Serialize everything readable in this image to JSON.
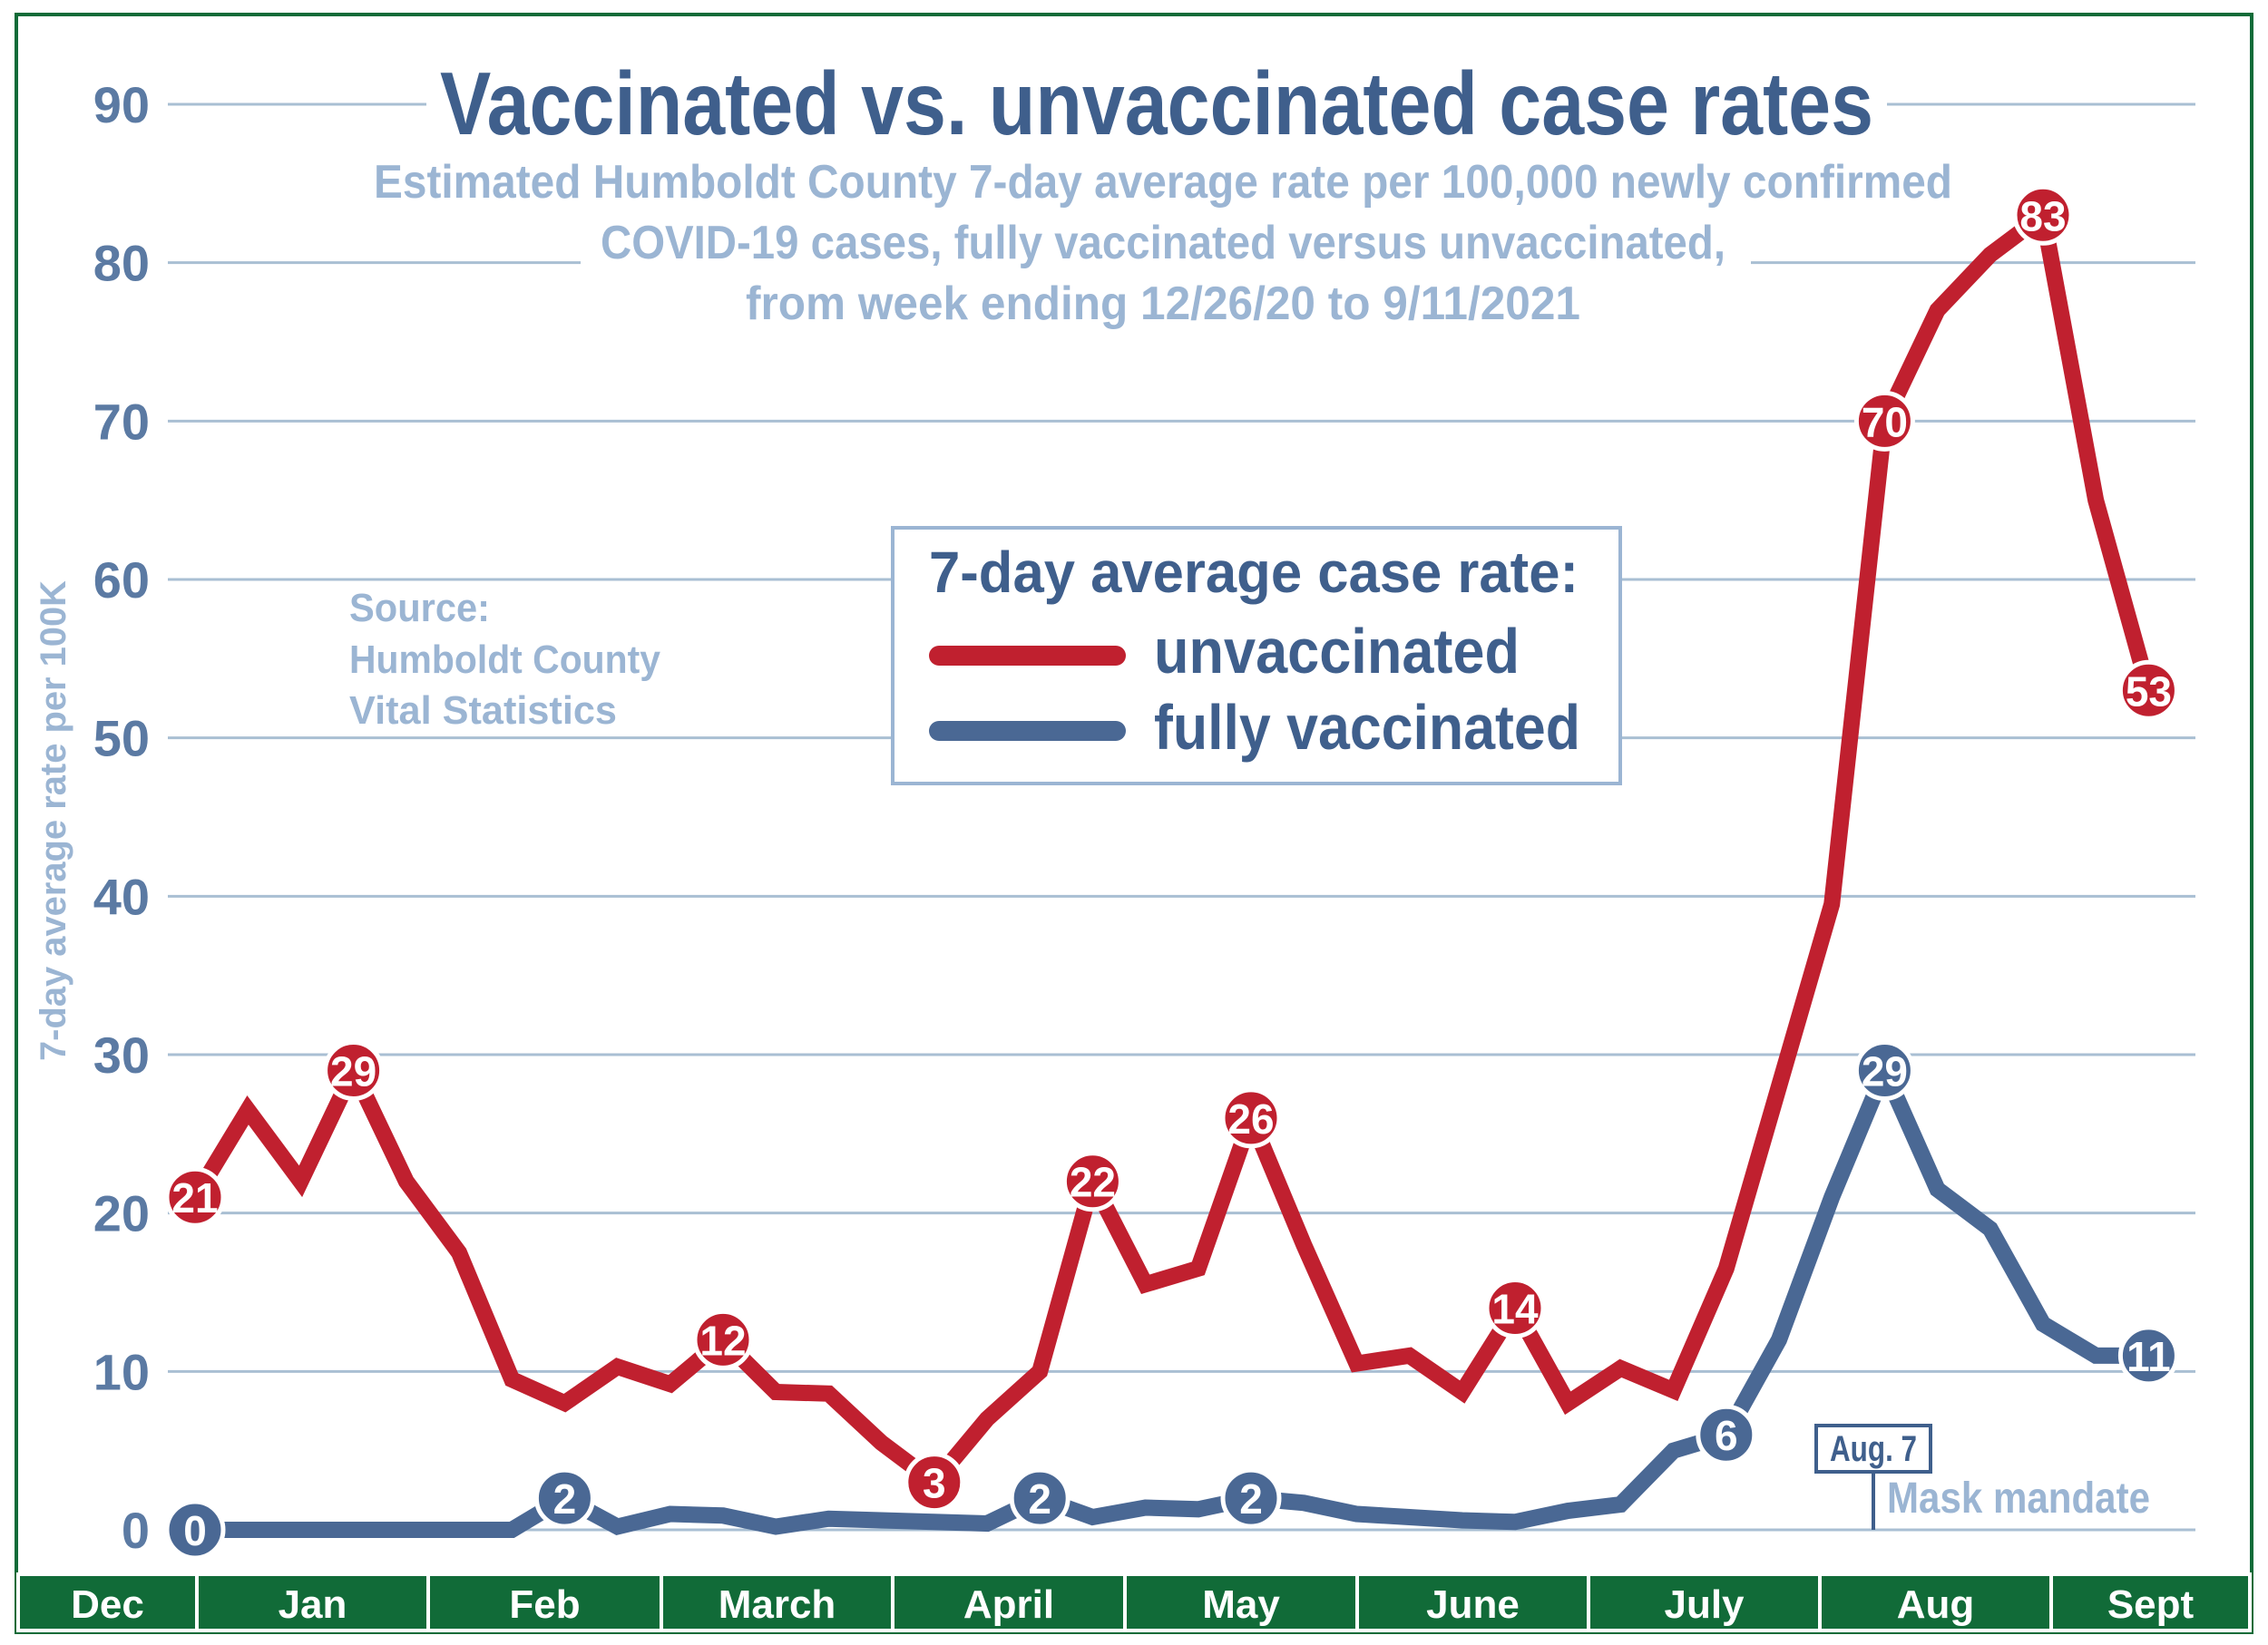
{
  "colors": {
    "unvaccinated": "#c0202f",
    "vaccinated": "#4a6894",
    "light_text": "#9bb5d3",
    "axis_text": "#5b7aa3",
    "month_bar": "#116b38",
    "grid": "#a9bfd3"
  },
  "chart_data": {
    "type": "line",
    "title": "Vaccinated vs. unvaccinated case rates",
    "subtitle": [
      "Estimated Humboldt County 7-day average rate per 100,000 newly confirmed",
      "COVID-19 cases,  fully vaccinated versus unvaccinated,",
      "from week ending 12/26/20 to 9/11/2021"
    ],
    "ylabel": "7-day average rate per 100K",
    "ylim": [
      0,
      90
    ],
    "yticks": [
      "0",
      "10",
      "20",
      "30",
      "40",
      "50",
      "60",
      "70",
      "80",
      "90"
    ],
    "grid": true,
    "x_months": [
      "Dec",
      "Jan",
      "Feb",
      "March",
      "April",
      "May",
      "June",
      "July",
      "Aug",
      "Sept"
    ],
    "legend": {
      "title": "7-day average case rate:",
      "placement": "center-right",
      "entries": [
        "unvaccinated",
        "fully vaccinated"
      ]
    },
    "source": [
      "Source:",
      "Humboldt County",
      "Vital Statistics"
    ],
    "annotation": {
      "date": "Aug. 7",
      "text": "Mask mandate",
      "week_index": 32
    },
    "series": [
      {
        "name": "unvaccinated",
        "color": "#c0202f",
        "values": [
          21,
          26.5,
          22,
          29,
          22,
          17.5,
          9.5,
          8,
          10.3,
          9.2,
          12,
          8.7,
          8.6,
          5.5,
          3,
          7,
          10,
          22,
          15.5,
          16.5,
          26,
          18,
          10.5,
          11,
          8.7,
          14,
          8,
          10.2,
          8.8,
          16.5,
          28,
          39.5,
          70,
          77,
          80.5,
          83,
          65,
          53
        ],
        "labels": [
          {
            "i": 0,
            "text": "21"
          },
          {
            "i": 3,
            "text": "29"
          },
          {
            "i": 10,
            "text": "12"
          },
          {
            "i": 14,
            "text": "3"
          },
          {
            "i": 17,
            "text": "22"
          },
          {
            "i": 20,
            "text": "26"
          },
          {
            "i": 25,
            "text": "14"
          },
          {
            "i": 32,
            "text": "70"
          },
          {
            "i": 35,
            "text": "83"
          },
          {
            "i": 37,
            "text": "53"
          }
        ]
      },
      {
        "name": "fully vaccinated",
        "color": "#4a6894",
        "values": [
          0,
          0,
          0,
          0,
          0,
          0,
          0,
          2,
          0.2,
          1,
          0.9,
          0.2,
          0.7,
          0.6,
          0.5,
          0.4,
          2,
          0.8,
          1.4,
          1.3,
          2,
          1.7,
          1,
          0.8,
          0.6,
          0.5,
          1.2,
          1.6,
          5,
          6,
          12,
          21,
          29,
          21.5,
          19,
          13,
          11,
          11
        ],
        "labels": [
          {
            "i": 0,
            "text": "0"
          },
          {
            "i": 7,
            "text": "2"
          },
          {
            "i": 16,
            "text": "2"
          },
          {
            "i": 20,
            "text": "2"
          },
          {
            "i": 29,
            "text": "6"
          },
          {
            "i": 32,
            "text": "29"
          },
          {
            "i": 37,
            "text": "11"
          }
        ]
      }
    ]
  }
}
